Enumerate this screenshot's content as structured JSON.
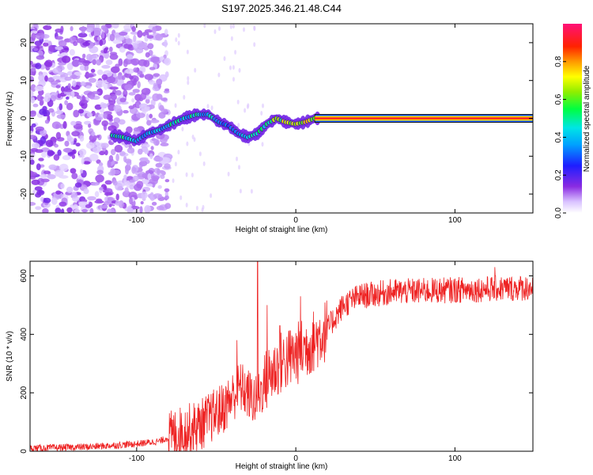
{
  "figure_title": "S197.2025.346.21.48.C44",
  "colors": {
    "snr_line": "#ee2222",
    "track_outline": "#1a1a1a",
    "frame": "#000000"
  },
  "chart_data": [
    {
      "type": "heatmap",
      "name": "spectrogram",
      "xlabel": "Height of straight line (km)",
      "ylabel": "Frequency (Hz)",
      "xlim": [
        -167,
        149
      ],
      "ylim": [
        -25,
        25
      ],
      "xticks": [
        -100,
        0,
        100
      ],
      "yticks": [
        -20,
        -10,
        0,
        10,
        20
      ],
      "colorbar": {
        "label": "Normalized spectral amplitude",
        "range": [
          0,
          1
        ],
        "ticks": [
          0.0,
          0.2,
          0.4,
          0.6,
          0.8
        ]
      },
      "noise_region_x": [
        -167,
        -80
      ],
      "signal_track": [
        {
          "x": -115,
          "f": -4.5,
          "a": 0.45
        },
        {
          "x": -108,
          "f": -5,
          "a": 0.55
        },
        {
          "x": -100,
          "f": -6,
          "a": 0.4
        },
        {
          "x": -93,
          "f": -4,
          "a": 0.45
        },
        {
          "x": -85,
          "f": -3,
          "a": 0.4
        },
        {
          "x": -78,
          "f": -1.5,
          "a": 0.5
        },
        {
          "x": -70,
          "f": 0,
          "a": 0.45
        },
        {
          "x": -62,
          "f": 1,
          "a": 0.5
        },
        {
          "x": -55,
          "f": 1,
          "a": 0.45
        },
        {
          "x": -48,
          "f": -1,
          "a": 0.4
        },
        {
          "x": -42,
          "f": -2,
          "a": 0.35
        },
        {
          "x": -36,
          "f": -4,
          "a": 0.4
        },
        {
          "x": -30,
          "f": -5,
          "a": 0.45
        },
        {
          "x": -24,
          "f": -4,
          "a": 0.5
        },
        {
          "x": -18,
          "f": -1.5,
          "a": 0.55
        },
        {
          "x": -12,
          "f": 0,
          "a": 0.75
        },
        {
          "x": -6,
          "f": -1,
          "a": 0.65
        },
        {
          "x": 0,
          "f": -1.5,
          "a": 0.8
        },
        {
          "x": 6,
          "f": -1,
          "a": 0.75
        },
        {
          "x": 12,
          "f": 0,
          "a": 0.8
        },
        {
          "x": 20,
          "f": 0,
          "a": 0.9
        },
        {
          "x": 149,
          "f": 0,
          "a": 0.9
        }
      ]
    },
    {
      "type": "line",
      "name": "snr",
      "xlabel": "Height of straight line (km)",
      "ylabel": "SNR (10 * v/v)",
      "xlim": [
        -167,
        149
      ],
      "ylim": [
        0,
        650
      ],
      "xticks": [
        -100,
        0,
        100
      ],
      "yticks": [
        0,
        200,
        400,
        600
      ],
      "trend": [
        {
          "x": -167,
          "y": 10
        },
        {
          "x": -130,
          "y": 15
        },
        {
          "x": -100,
          "y": 25
        },
        {
          "x": -85,
          "y": 35
        },
        {
          "x": -75,
          "y": 60
        },
        {
          "x": -60,
          "y": 90
        },
        {
          "x": -45,
          "y": 150
        },
        {
          "x": -35,
          "y": 220
        },
        {
          "x": -25,
          "y": 170
        },
        {
          "x": -18,
          "y": 250
        },
        {
          "x": -10,
          "y": 300
        },
        {
          "x": 0,
          "y": 330
        },
        {
          "x": 10,
          "y": 370
        },
        {
          "x": 20,
          "y": 420
        },
        {
          "x": 30,
          "y": 500
        },
        {
          "x": 40,
          "y": 530
        },
        {
          "x": 60,
          "y": 545
        },
        {
          "x": 90,
          "y": 550
        },
        {
          "x": 120,
          "y": 555
        },
        {
          "x": 149,
          "y": 560
        }
      ],
      "peaks": [
        {
          "x": -24,
          "y": 650
        },
        {
          "x": -37,
          "y": 380
        },
        {
          "x": -18,
          "y": 500
        },
        {
          "x": -10,
          "y": 430
        },
        {
          "x": 3,
          "y": 530
        },
        {
          "x": 125,
          "y": 630
        }
      ]
    }
  ]
}
